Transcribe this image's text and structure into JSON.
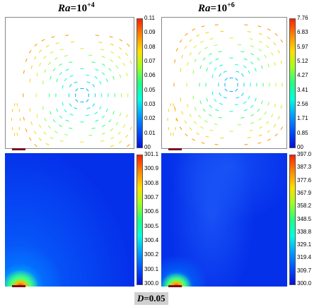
{
  "titles": {
    "left": {
      "var": "Ra",
      "eq": "=10",
      "exp": "+4"
    },
    "right": {
      "var": "Ra",
      "eq": "=10",
      "exp": "+6"
    }
  },
  "footer": {
    "var": "D",
    "rest": "=0.05"
  },
  "chart_data": [
    {
      "type": "heatmap",
      "panel": "velocity vectors",
      "column": "Ra=10+4",
      "colorbar_ticks": [
        "0.11",
        "0.09",
        "0.08",
        "0.07",
        "0.06",
        "0.05",
        "0.03",
        "0.02",
        "0.01",
        "00"
      ],
      "range": [
        0,
        0.11
      ]
    },
    {
      "type": "heatmap",
      "panel": "velocity vectors",
      "column": "Ra=10+6",
      "colorbar_ticks": [
        "7.76",
        "6.83",
        "5.97",
        "5.12",
        "4.27",
        "3.41",
        "2.56",
        "1.71",
        "0.85",
        "00"
      ],
      "range": [
        0,
        7.76
      ]
    },
    {
      "type": "heatmap",
      "panel": "temperature contours",
      "column": "Ra=10+4",
      "colorbar_ticks": [
        "301.1",
        "300.9",
        "300.8",
        "300.7",
        "300.6",
        "300.5",
        "300.4",
        "300.2",
        "300.1",
        "300.0"
      ],
      "range": [
        300.0,
        301.1
      ]
    },
    {
      "type": "heatmap",
      "panel": "temperature contours",
      "column": "Ra=10+6",
      "colorbar_ticks": [
        "397.0",
        "387.3",
        "377.6",
        "367.9",
        "358.2",
        "348.5",
        "338.8",
        "329.1",
        "319.4",
        "309.7",
        "300.0"
      ],
      "range": [
        300.0,
        397.0
      ]
    }
  ],
  "colors": {
    "heater": "#7a1020",
    "cold": "#0018e0",
    "hot": "#ff1000"
  }
}
